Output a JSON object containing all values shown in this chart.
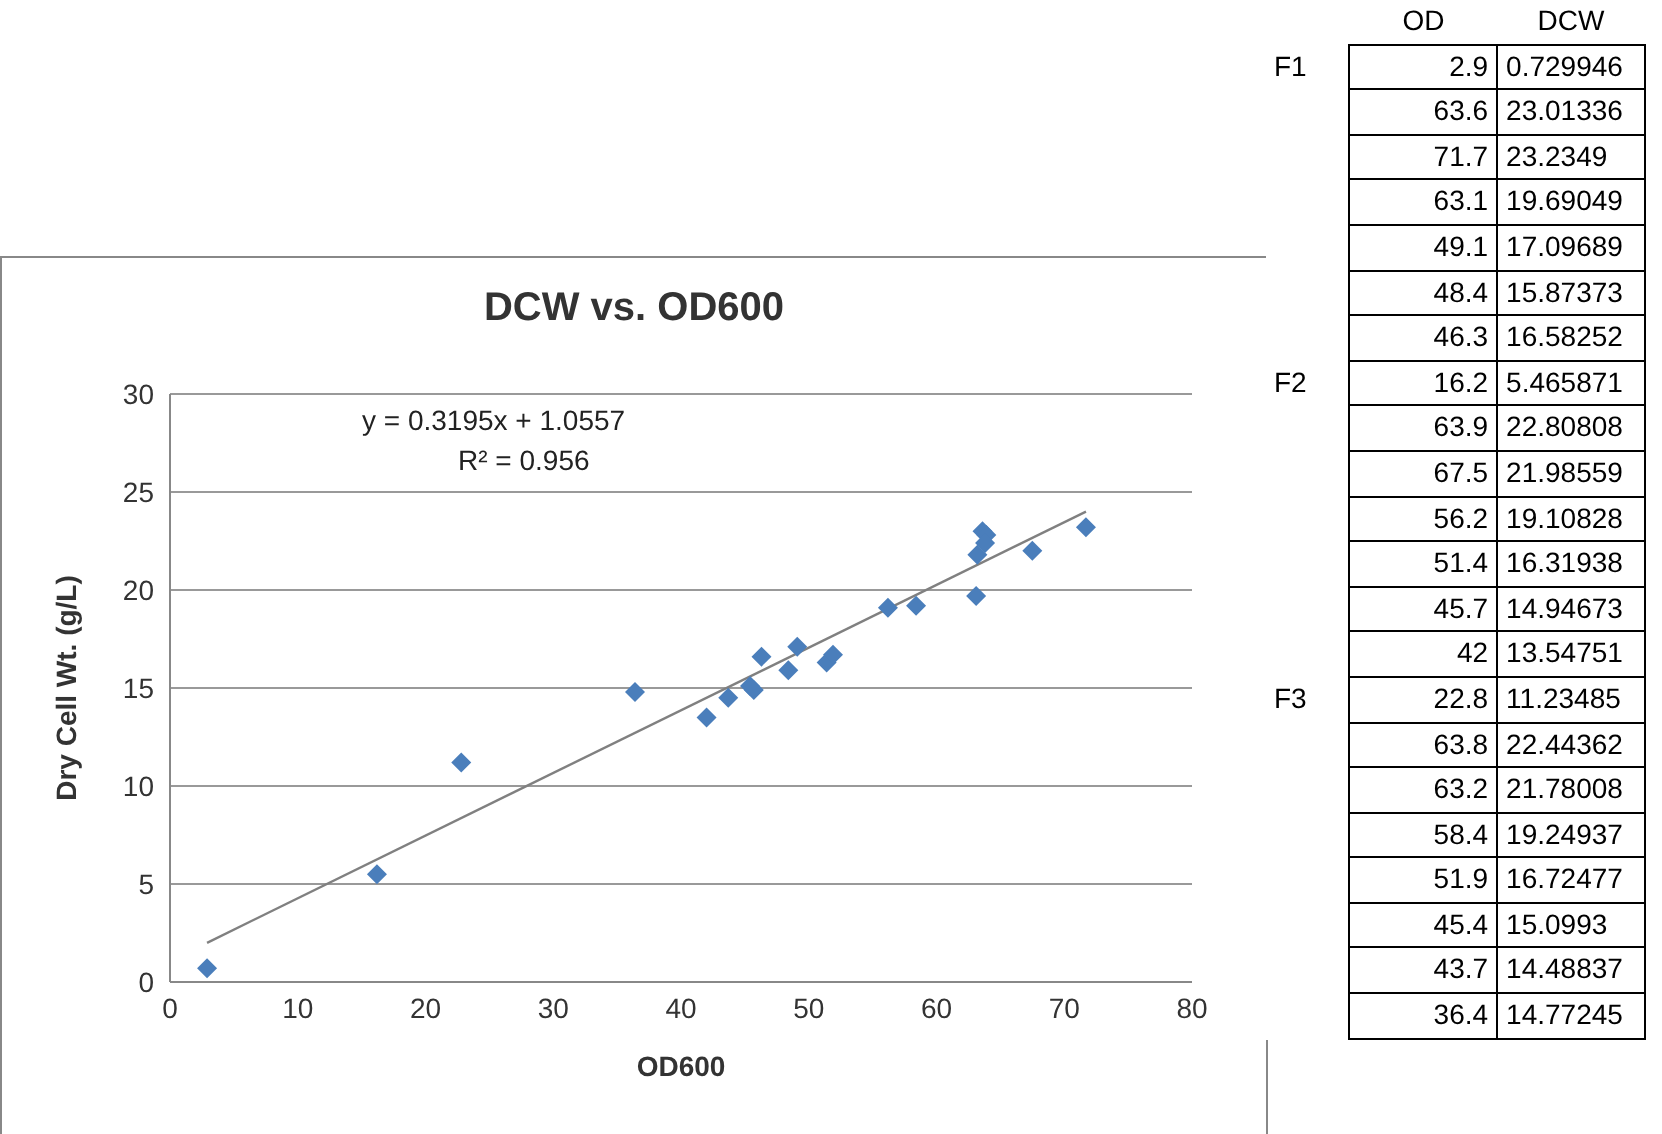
{
  "chart_data": [
    {
      "type": "scatter",
      "title": "DCW vs. OD600",
      "xlabel": "OD600",
      "ylabel": "Dry Cell Wt. (g/L)",
      "xlim": [
        0,
        80
      ],
      "xticks": [
        0,
        10,
        20,
        30,
        40,
        50,
        60,
        70,
        80
      ],
      "ylim": [
        0,
        30
      ],
      "yticks": [
        0,
        5,
        10,
        15,
        20,
        25,
        30
      ],
      "grid": "y",
      "marker": "diamond",
      "annotations": [
        "y = 0.3195x + 1.0557",
        "R² = 0.956"
      ],
      "series": [
        {
          "color": "#4a7ebb",
          "x": [
            2.9,
            63.6,
            71.7,
            63.1,
            49.1,
            48.4,
            46.3,
            16.2,
            63.9,
            67.5,
            56.2,
            51.4,
            45.7,
            42,
            22.8,
            63.8,
            63.2,
            58.4,
            51.9,
            45.4,
            43.7,
            36.4
          ],
          "values": [
            0.7,
            23.0,
            23.2,
            19.7,
            17.1,
            15.9,
            16.6,
            5.5,
            22.8,
            22.0,
            19.1,
            16.3,
            14.9,
            13.5,
            11.2,
            22.4,
            21.8,
            19.2,
            16.7,
            15.1,
            14.5,
            14.8
          ]
        },
        {
          "type": "line",
          "color": "#808080",
          "line_style": "solid",
          "marker": "none",
          "x": [
            2.9,
            71.7
          ],
          "values": [
            2.0,
            24.0
          ]
        }
      ]
    },
    {
      "type": "heatmap",
      "data_labels": true,
      "categories": [
        "OD",
        "DCW"
      ],
      "y_categories": [
        "F1",
        null,
        null,
        null,
        null,
        null,
        null,
        "F2",
        null,
        null,
        null,
        null,
        null,
        null,
        "F3",
        null,
        null,
        null,
        null,
        null,
        null,
        null
      ],
      "cells": [
        [
          2.9,
          0.729946
        ],
        [
          63.6,
          23.01336
        ],
        [
          71.7,
          23.2349
        ],
        [
          63.1,
          19.69049
        ],
        [
          49.1,
          17.09689
        ],
        [
          48.4,
          15.87373
        ],
        [
          46.3,
          16.58252
        ],
        [
          16.2,
          5.465871
        ],
        [
          63.9,
          22.80808
        ],
        [
          67.5,
          21.98559
        ],
        [
          56.2,
          19.10828
        ],
        [
          51.4,
          16.31938
        ],
        [
          45.7,
          14.94673
        ],
        [
          42,
          13.54751
        ],
        [
          22.8,
          11.23485
        ],
        [
          63.8,
          22.44362
        ],
        [
          63.2,
          21.78008
        ],
        [
          58.4,
          19.24937
        ],
        [
          51.9,
          16.72477
        ],
        [
          45.4,
          15.0993
        ],
        [
          43.7,
          14.48837
        ],
        [
          36.4,
          14.77245
        ]
      ]
    }
  ]
}
